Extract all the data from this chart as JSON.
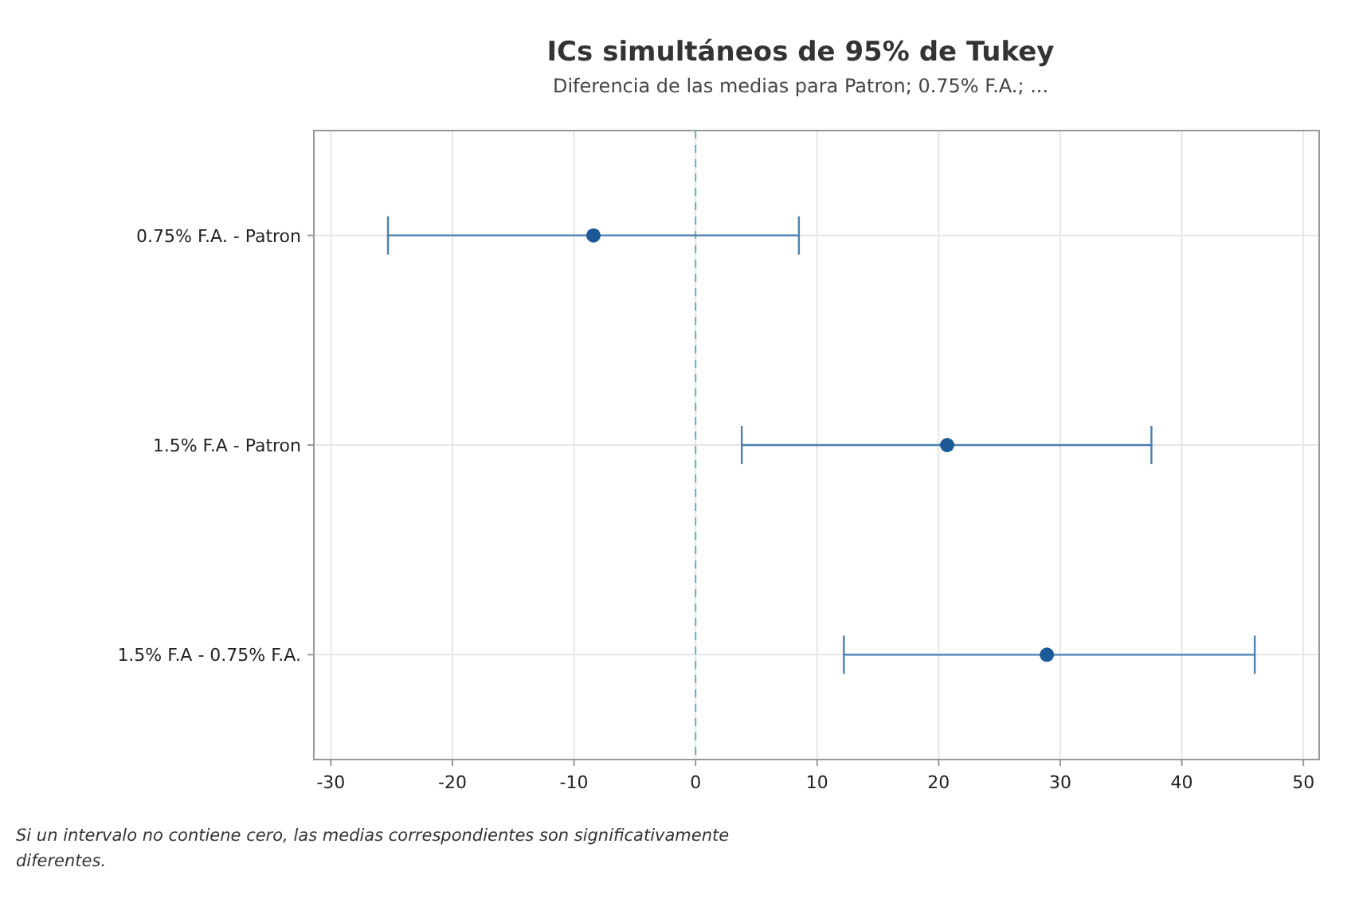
{
  "chart_data": {
    "type": "scatter",
    "orientation": "horizontal",
    "title": "ICs simultáneos de 95% de Tukey",
    "subtitle": "Diferencia de las medias para Patron; 0.75% F.A.; ...",
    "categories": [
      "0.75% F.A. - Patron",
      "1.5% F.A - Patron",
      "1.5% F.A - 0.75% F.A."
    ],
    "values": [
      -8.4,
      20.7,
      28.9
    ],
    "errors": [
      [
        -25.3,
        8.5
      ],
      [
        3.8,
        37.5
      ],
      [
        12.2,
        46.0
      ]
    ],
    "color": "#1b5a96",
    "marker": "circle",
    "grid": true,
    "xlim": [
      -31.4,
      51.3
    ],
    "xticks": [
      -30,
      -20,
      -10,
      0,
      10,
      20,
      30,
      40,
      50
    ],
    "ref_lines": [
      {
        "axis": "x",
        "value": 0,
        "color": "#5bb5c9",
        "line_style": "dashed"
      }
    ],
    "annotations": [
      "Si un intervalo no contiene cero, las medias correspondientes son significativamente diferentes."
    ]
  }
}
